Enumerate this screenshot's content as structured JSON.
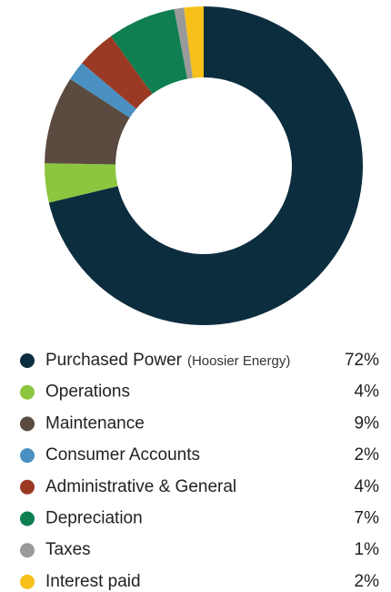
{
  "chart_data": {
    "type": "donut",
    "categories": [
      "Purchased Power",
      "Operations",
      "Maintenance",
      "Consumer Accounts",
      "Administrative & General",
      "Depreciation",
      "Taxes",
      "Interest paid"
    ],
    "legend_note": "(Hoosier Energy)",
    "values": [
      72,
      4,
      9,
      2,
      4,
      7,
      1,
      2
    ],
    "value_labels": [
      "72%",
      "4%",
      "9%",
      "2%",
      "4%",
      "7%",
      "1%",
      "2%"
    ],
    "colors": [
      "#0c2d3e",
      "#8cc63f",
      "#5a4a3f",
      "#4a90c2",
      "#9b3a24",
      "#0f7f52",
      "#9a9a9a",
      "#f7c11a"
    ]
  }
}
